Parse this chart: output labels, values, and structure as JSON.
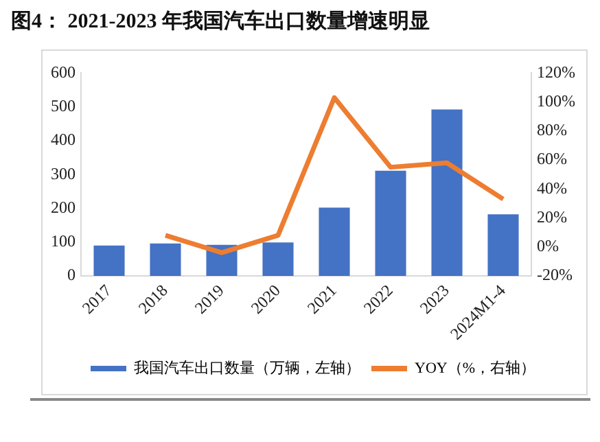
{
  "chart_data": {
    "type": "bar",
    "title": "图4：  2021-2023 年我国汽车出口数量增速明显",
    "categories": [
      "2017",
      "2018",
      "2019",
      "2020",
      "2021",
      "2022",
      "2023",
      "2024M1-4"
    ],
    "series": [
      {
        "name": "我国汽车出口数量（万辆，左轴）",
        "color": "#4472c4",
        "values": [
          90,
          96,
          92,
          99,
          202,
          311,
          492,
          182
        ]
      },
      {
        "name": "YOY（%，右轴）",
        "type": "line",
        "axis": "y2",
        "color": "#ed7d31",
        "marker": "none",
        "values": [
          null,
          8,
          -4,
          8,
          103,
          55,
          58,
          33
        ]
      }
    ],
    "ylim": [
      0,
      600
    ],
    "yticks": [
      0,
      100,
      200,
      300,
      400,
      500,
      600
    ],
    "y2lim": [
      -20,
      120
    ],
    "y2ticks": [
      {
        "value": -20,
        "label": "-20%"
      },
      {
        "value": 0,
        "label": "0%"
      },
      {
        "value": 20,
        "label": "20%"
      },
      {
        "value": 40,
        "label": "40%"
      },
      {
        "value": 60,
        "label": "60%"
      },
      {
        "value": 80,
        "label": "80%"
      },
      {
        "value": 100,
        "label": "100%"
      },
      {
        "value": 120,
        "label": "120%"
      }
    ],
    "grid": false,
    "legend": "bottom"
  }
}
